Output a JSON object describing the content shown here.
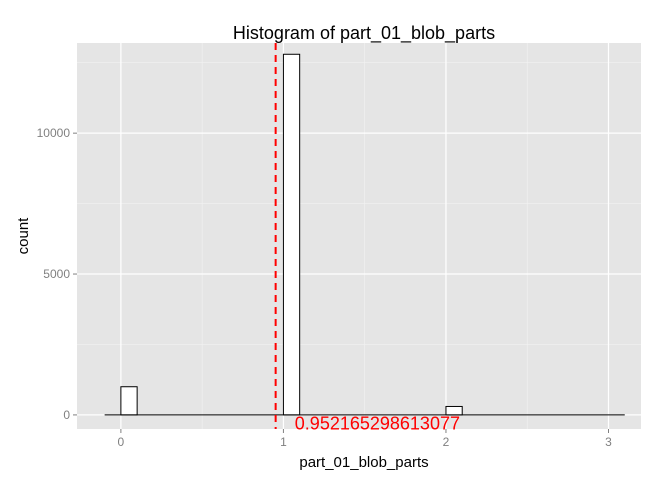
{
  "chart_data": {
    "type": "bar",
    "title": "Histogram of  part_01_blob_parts",
    "xlabel": "part_01_blob_parts",
    "ylabel": "count",
    "xlim": [
      -0.27,
      3.2
    ],
    "ylim": [
      -500,
      13200
    ],
    "x_ticks": [
      0,
      1,
      2,
      3
    ],
    "x_tick_labels": [
      "0",
      "1",
      "2",
      "3"
    ],
    "y_ticks": [
      0,
      5000,
      10000
    ],
    "y_tick_labels": [
      "0",
      "5000",
      "10000"
    ],
    "bin_width": 0.1,
    "bins": [
      {
        "x0": 0.0,
        "x1": 0.1,
        "count": 1000
      },
      {
        "x0": 1.0,
        "x1": 1.1,
        "count": 12800
      },
      {
        "x0": 2.0,
        "x1": 2.1,
        "count": 300
      }
    ],
    "baseline": {
      "x0": -0.1,
      "x1": 3.1
    },
    "vline": {
      "x": 0.952165298613077,
      "color": "#ff0000",
      "style": "dashed"
    },
    "annotation": {
      "text": "0.952165298613077",
      "x": 1.07,
      "y": -300,
      "color": "#ff0000"
    },
    "grid": true,
    "panel_color": "#e5e5e5",
    "grid_color": "#ffffff",
    "bar_fill": "#ffffff",
    "bar_stroke": "#000000"
  }
}
